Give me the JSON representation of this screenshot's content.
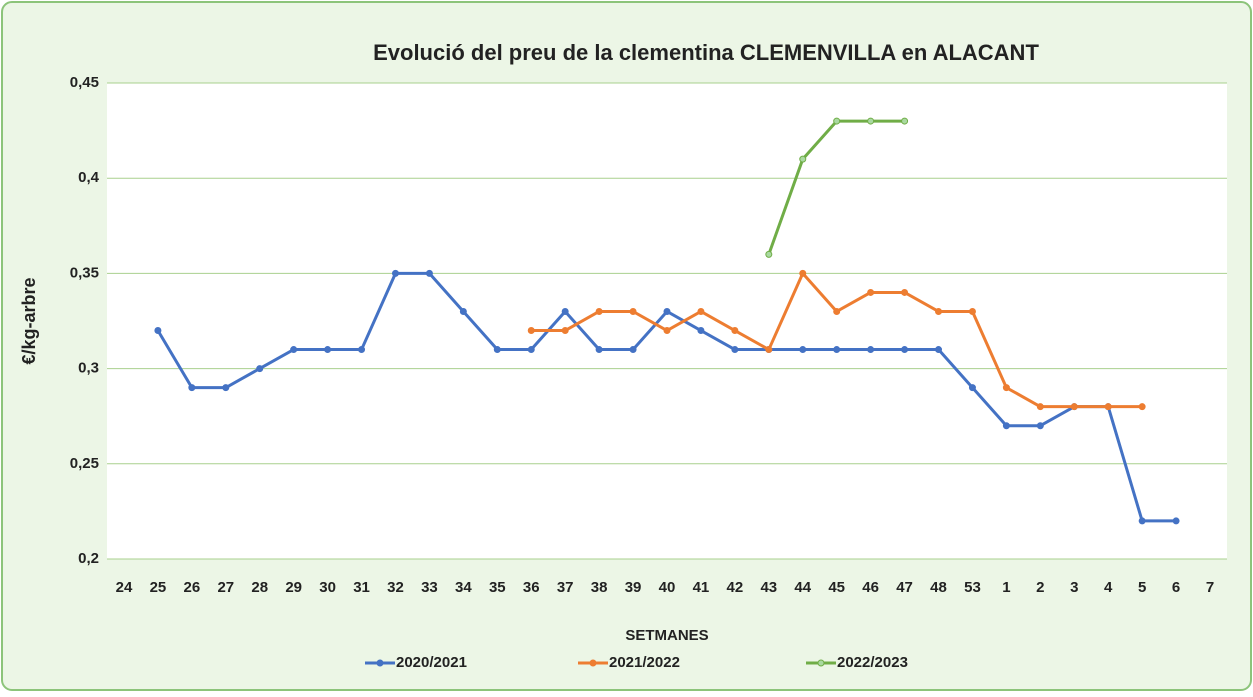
{
  "chart_data": {
    "type": "line",
    "title": "Evolució del preu de la  clementina CLEMENVILLA en ALACANT",
    "x_label": "SETMANES",
    "y_label": "€/kg-arbre",
    "categories": [
      "24",
      "25",
      "26",
      "27",
      "28",
      "29",
      "30",
      "31",
      "32",
      "33",
      "34",
      "35",
      "36",
      "37",
      "38",
      "39",
      "40",
      "41",
      "42",
      "43",
      "44",
      "45",
      "46",
      "47",
      "48",
      "53",
      "1",
      "2",
      "3",
      "4",
      "5",
      "6",
      "7"
    ],
    "series": [
      {
        "name": "2020/2021",
        "color": "#4472c4",
        "values": [
          null,
          0.32,
          0.29,
          0.29,
          0.3,
          0.31,
          0.31,
          0.31,
          0.35,
          0.35,
          0.33,
          0.31,
          0.31,
          0.33,
          0.31,
          0.31,
          0.33,
          0.32,
          0.31,
          0.31,
          0.31,
          0.31,
          0.31,
          0.31,
          0.31,
          0.29,
          0.27,
          0.27,
          0.28,
          0.28,
          0.22,
          0.22,
          null
        ]
      },
      {
        "name": "2021/2022",
        "color": "#ed7d31",
        "values": [
          null,
          null,
          null,
          null,
          null,
          null,
          null,
          null,
          null,
          null,
          null,
          null,
          0.32,
          0.32,
          0.33,
          0.33,
          0.32,
          0.33,
          0.32,
          0.31,
          0.35,
          0.33,
          0.34,
          0.34,
          0.33,
          0.33,
          0.29,
          0.28,
          0.28,
          0.28,
          0.28,
          null,
          null
        ]
      },
      {
        "name": "2022/2023",
        "color": "#70ad47",
        "values": [
          null,
          null,
          null,
          null,
          null,
          null,
          null,
          null,
          null,
          null,
          null,
          null,
          null,
          null,
          null,
          null,
          null,
          null,
          null,
          0.36,
          0.41,
          0.43,
          0.43,
          0.43,
          null,
          null,
          null,
          null,
          null,
          null,
          null,
          null,
          null
        ]
      }
    ],
    "ylim": [
      0.2,
      0.45
    ],
    "yticks": [
      {
        "value": 0.2,
        "label": "0,2"
      },
      {
        "value": 0.25,
        "label": "0,25"
      },
      {
        "value": 0.3,
        "label": "0,3"
      },
      {
        "value": 0.35,
        "label": "0,35"
      },
      {
        "value": 0.4,
        "label": "0,4"
      },
      {
        "value": 0.45,
        "label": "0,45"
      }
    ],
    "grid": true,
    "legend": "bottom"
  }
}
